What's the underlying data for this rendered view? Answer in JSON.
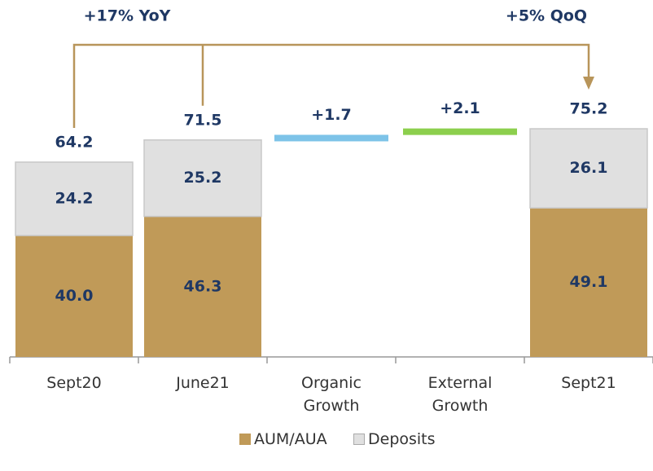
{
  "chart_data": {
    "type": "waterfall",
    "annotations": [
      "+17% YoY",
      "+5% QoQ"
    ],
    "categories": [
      "Sept20",
      "June21",
      "Organic Growth",
      "External Growth",
      "Sept21"
    ],
    "series": [
      {
        "name": "AUM/AUA",
        "color": "#c09a58",
        "values": [
          40.0,
          46.3,
          null,
          null,
          49.1
        ],
        "value_labels": [
          "40.0",
          "46.3",
          null,
          null,
          "49.1"
        ]
      },
      {
        "name": "Deposits",
        "color": "#e0e0e0",
        "values": [
          24.2,
          25.2,
          null,
          null,
          26.1
        ],
        "value_labels": [
          "24.2",
          "25.2",
          null,
          null,
          "26.1"
        ]
      }
    ],
    "totals": {
      "values": [
        64.2,
        71.5,
        null,
        null,
        75.2
      ]
    },
    "increments": {
      "values": [
        null,
        null,
        1.7,
        2.1,
        null
      ],
      "value_labels": [
        null,
        null,
        "+1.7",
        "+2.1",
        null
      ],
      "colors": [
        null,
        null,
        "#7dc3e8",
        "#8ccf4d",
        null
      ]
    },
    "connector_color": "#b8955a"
  }
}
